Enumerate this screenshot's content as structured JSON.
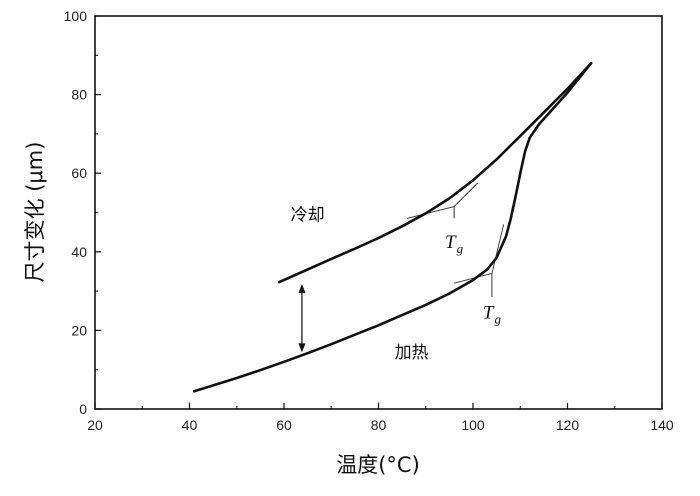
{
  "chart_data": {
    "type": "line",
    "xlabel": "温度(°C)",
    "ylabel": "尺寸变化 (μm)",
    "xlim": [
      20,
      140
    ],
    "ylim": [
      0,
      100
    ],
    "x_ticks": [
      20,
      40,
      60,
      80,
      100,
      120,
      140
    ],
    "y_ticks": [
      0,
      20,
      40,
      60,
      80,
      100
    ],
    "grid": false,
    "series": [
      {
        "name": "冷却",
        "x": [
          59,
          65,
          70,
          75,
          80,
          85,
          90,
          95,
          100,
          105,
          110,
          115,
          120,
          125
        ],
        "y": [
          32.3,
          35.5,
          38.2,
          40.8,
          43.5,
          46.5,
          49.8,
          53.6,
          58.2,
          63.5,
          69.5,
          75.5,
          81.5,
          88.0
        ]
      },
      {
        "name": "加热",
        "x": [
          41,
          45,
          50,
          55,
          60,
          65,
          70,
          75,
          80,
          85,
          90,
          95,
          100,
          103,
          105,
          107,
          108,
          109,
          110,
          111,
          112,
          114,
          117,
          120,
          125
        ],
        "y": [
          4.5,
          6.0,
          7.9,
          9.9,
          12.0,
          14.2,
          16.5,
          18.9,
          21.3,
          23.9,
          26.5,
          29.4,
          32.8,
          35.5,
          38.5,
          44.0,
          48.5,
          54.0,
          60.0,
          65.5,
          69.0,
          72.5,
          76.5,
          80.5,
          88.0
        ]
      }
    ],
    "annotations": [
      {
        "text": "冷却",
        "x": 65,
        "y": 48
      },
      {
        "text": "加热",
        "x": 87,
        "y": 13
      },
      {
        "text": "T",
        "sub": "g",
        "x": 96,
        "y": 41
      },
      {
        "text": "T",
        "sub": "g",
        "x": 104,
        "y": 23
      }
    ],
    "tangent_lines": [
      {
        "points": [
          [
            86,
            48.5
          ],
          [
            96,
            51.5
          ],
          [
            101,
            57.5
          ]
        ]
      },
      {
        "points": [
          [
            96,
            32
          ],
          [
            104,
            34.5
          ],
          [
            106.5,
            47
          ]
        ]
      }
    ],
    "tg_markers": [
      {
        "x": 96,
        "y1": 51.5,
        "y2": 48.5
      },
      {
        "x": 104,
        "y1": 34.5,
        "y2": 28.5
      }
    ],
    "arrow": {
      "x": 63.8,
      "y_top": 31.8,
      "y_bottom": 14.4
    }
  }
}
